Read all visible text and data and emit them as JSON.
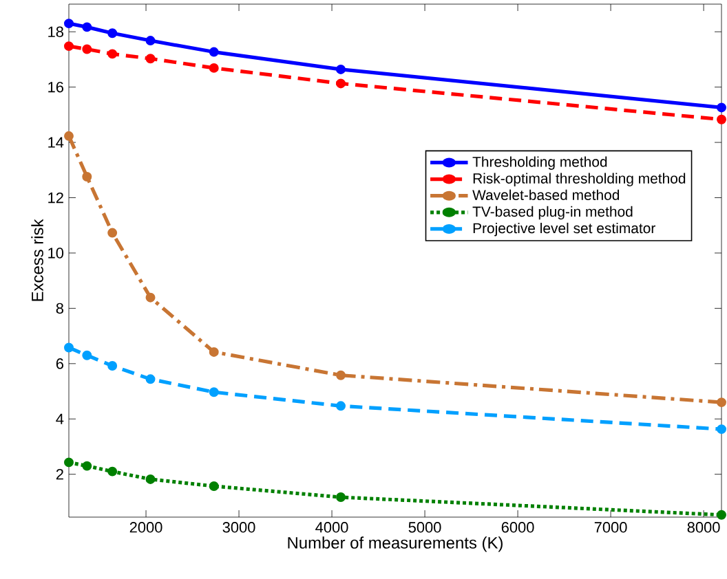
{
  "chart_data": {
    "type": "line",
    "xlabel": "Number of measurements (K)",
    "ylabel": "Excess risk",
    "x": [
      1170,
      1365,
      1638,
      2048,
      2731,
      4096,
      8192
    ],
    "xlim": [
      1170,
      8192
    ],
    "xticks": [
      2000,
      3000,
      4000,
      5000,
      6000,
      7000,
      8000
    ],
    "ylim": [
      0.45,
      19
    ],
    "yticks": [
      2,
      4,
      6,
      8,
      10,
      12,
      14,
      16,
      18
    ],
    "grid": false,
    "legend": "right",
    "marker": "circle",
    "series": [
      {
        "name": "Thresholding method",
        "color": "#0000ff",
        "line_style": "solid",
        "values": [
          18.3,
          18.17,
          17.95,
          17.68,
          17.27,
          16.64,
          15.26
        ]
      },
      {
        "name": "Risk-optimal thresholding method",
        "color": "#ff0000",
        "line_style": "dashed",
        "values": [
          17.48,
          17.37,
          17.2,
          17.03,
          16.69,
          16.13,
          14.83
        ]
      },
      {
        "name": "Wavelet-based method",
        "color": "#c87533",
        "line_style": "dashdot",
        "values": [
          14.23,
          12.76,
          10.73,
          8.39,
          6.42,
          5.58,
          4.6
        ]
      },
      {
        "name": "TV-based plug-in method",
        "color": "#008000",
        "line_style": "dotted",
        "values": [
          2.43,
          2.3,
          2.1,
          1.82,
          1.57,
          1.17,
          0.53
        ]
      },
      {
        "name": "Projective level set estimator",
        "color": "#00a0ff",
        "line_style": "dashed",
        "values": [
          6.58,
          6.3,
          5.92,
          5.44,
          4.97,
          4.47,
          3.63
        ]
      }
    ]
  }
}
